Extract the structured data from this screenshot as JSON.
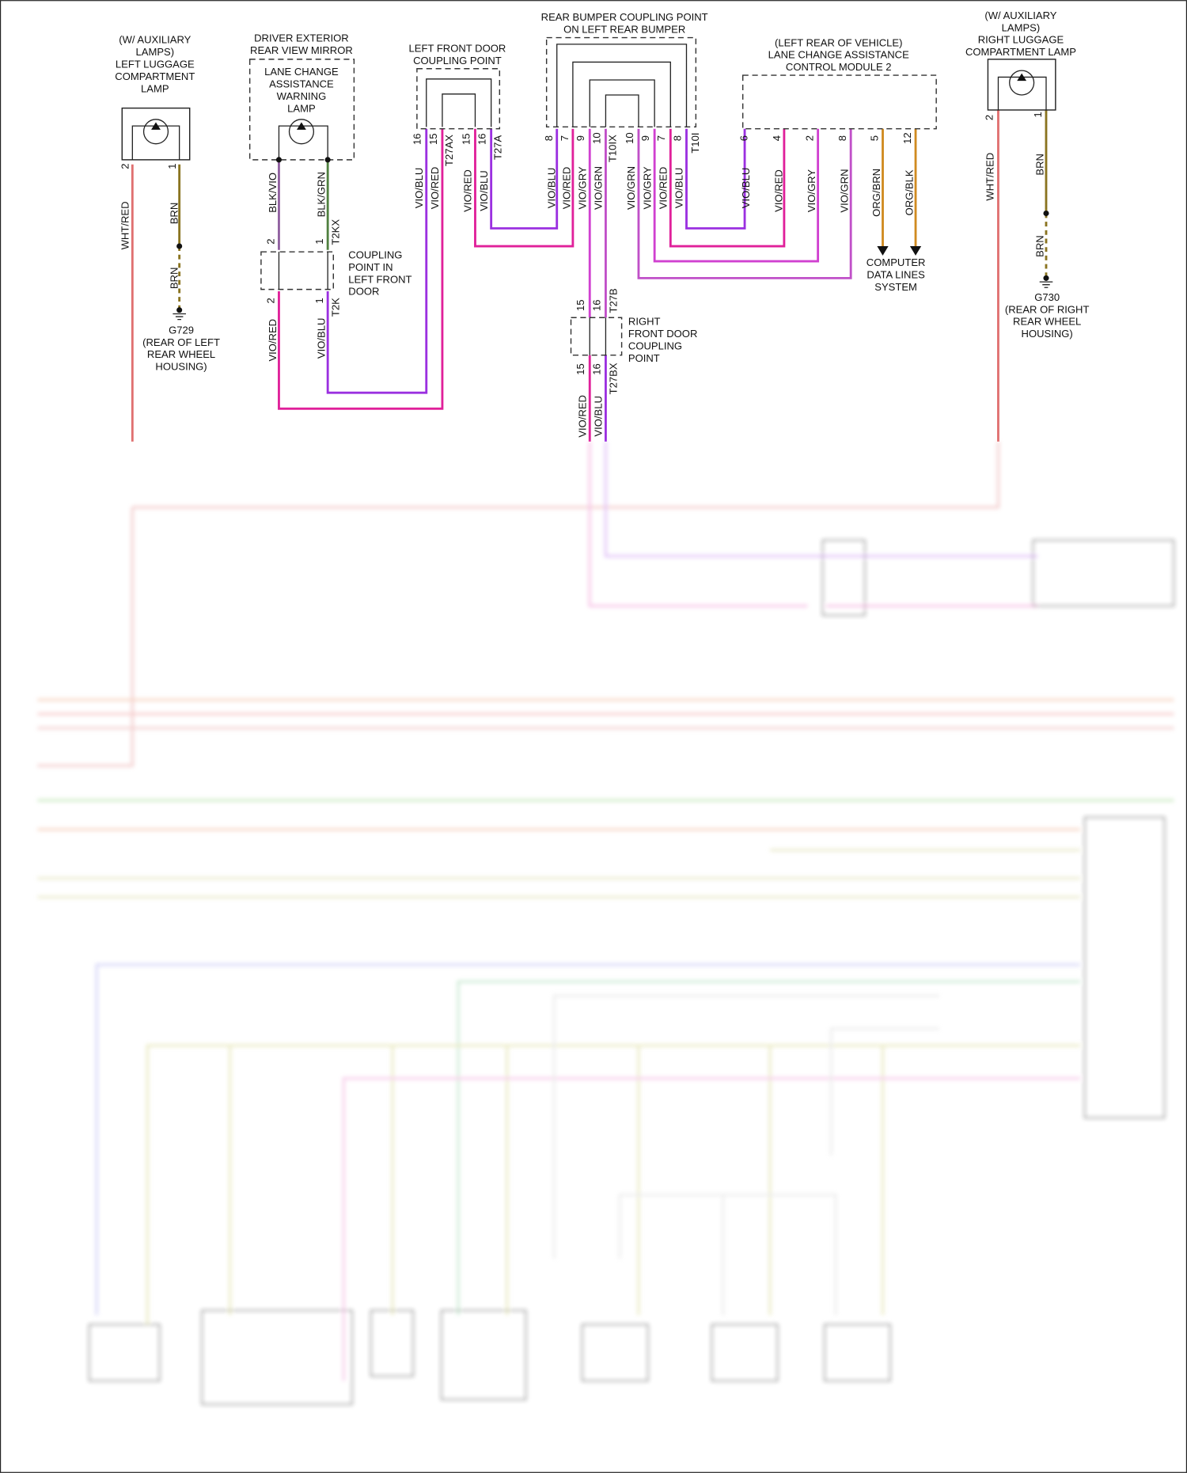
{
  "colors": {
    "VIO_BLU": "#9b30e0",
    "VIO_RED": "#e0209a",
    "VIO_GRY": "#d040d0",
    "VIO_GRN": "#c050c8",
    "WHT_RED": "#e07070",
    "BRN": "#8a7420",
    "BLK_VIO": "#9060a0",
    "BLK_GRN": "#508040",
    "ORG": "#d08a20"
  },
  "components": {
    "left_lamp": {
      "lines": [
        "(W/ AUXILIARY",
        "LAMPS)",
        "LEFT LUGGAGE",
        "COMPARTMENT",
        "LAMP"
      ],
      "icon": "led-lamp-icon"
    },
    "mirror": {
      "lines": [
        "DRIVER EXTERIOR",
        "REAR VIEW MIRROR"
      ]
    },
    "warning_lamp": {
      "lines": [
        "LANE CHANGE",
        "ASSISTANCE",
        "WARNING",
        "LAMP"
      ],
      "icon": "led-lamp-icon"
    },
    "left_door_coupling": {
      "lines": [
        "LEFT FRONT DOOR",
        "COUPLING POINT"
      ]
    },
    "rear_bumper": {
      "lines": [
        "REAR BUMPER COUPLING POINT",
        "ON LEFT REAR BUMPER"
      ]
    },
    "module": {
      "lines": [
        "(LEFT REAR OF VEHICLE)",
        "LANE CHANGE ASSISTANCE",
        "CONTROL MODULE 2"
      ]
    },
    "right_lamp": {
      "lines": [
        "(W/ AUXILIARY",
        "LAMPS)",
        "RIGHT LUGGAGE",
        "COMPARTMENT LAMP"
      ],
      "icon": "led-lamp-icon"
    },
    "coupling_lfd": {
      "lines": [
        "COUPLING",
        "POINT IN",
        "LEFT FRONT",
        "DOOR"
      ]
    },
    "right_door_coupling": {
      "lines": [
        "RIGHT",
        "FRONT DOOR",
        "COUPLING",
        "POINT"
      ]
    },
    "g729": {
      "lines": [
        "G729",
        "(REAR OF LEFT",
        "REAR WHEEL",
        "HOUSING)"
      ],
      "icon": "ground-icon"
    },
    "g730": {
      "lines": [
        "G730",
        "(REAR OF RIGHT",
        "REAR WHEEL",
        "HOUSING)"
      ],
      "icon": "ground-icon"
    },
    "data_lines": {
      "lines": [
        "COMPUTER",
        "DATA LINES",
        "SYSTEM"
      ]
    }
  },
  "labels": [
    {
      "t": "WHT/RED"
    },
    {
      "t": "BRN"
    },
    {
      "t": "BRN"
    },
    {
      "t": "BLK/VIO"
    },
    {
      "t": "BLK/GRN"
    },
    {
      "t": "T2KX"
    },
    {
      "t": "2"
    },
    {
      "t": "1"
    },
    {
      "t": "2"
    },
    {
      "t": "1"
    },
    {
      "t": "T2K"
    },
    {
      "t": "VIO/RED"
    },
    {
      "t": "VIO/BLU"
    },
    {
      "t": "2"
    },
    {
      "t": "1"
    },
    {
      "t": "16"
    },
    {
      "t": "15"
    },
    {
      "t": "T27AX"
    },
    {
      "t": "15"
    },
    {
      "t": "16"
    },
    {
      "t": "T27A"
    },
    {
      "t": "VIO/BLU"
    },
    {
      "t": "VIO/RED"
    },
    {
      "t": "VIO/RED"
    },
    {
      "t": "VIO/BLU"
    },
    {
      "t": "8"
    },
    {
      "t": "7"
    },
    {
      "t": "9"
    },
    {
      "t": "10"
    },
    {
      "t": "T10IX"
    },
    {
      "t": "10"
    },
    {
      "t": "9"
    },
    {
      "t": "7"
    },
    {
      "t": "8"
    },
    {
      "t": "T10I"
    },
    {
      "t": "VIO/BLU"
    },
    {
      "t": "VIO/RED"
    },
    {
      "t": "VIO/GRY"
    },
    {
      "t": "VIO/GRN"
    },
    {
      "t": "VIO/GRN"
    },
    {
      "t": "VIO/GRY"
    },
    {
      "t": "VIO/RED"
    },
    {
      "t": "VIO/BLU"
    },
    {
      "t": "6"
    },
    {
      "t": "4"
    },
    {
      "t": "2"
    },
    {
      "t": "8"
    },
    {
      "t": "5"
    },
    {
      "t": "12"
    },
    {
      "t": "VIO/BLU"
    },
    {
      "t": "VIO/RED"
    },
    {
      "t": "VIO/GRY"
    },
    {
      "t": "VIO/GRN"
    },
    {
      "t": "ORG/BRN"
    },
    {
      "t": "ORG/BLK"
    },
    {
      "t": "15"
    },
    {
      "t": "16"
    },
    {
      "t": "T27B"
    },
    {
      "t": "15"
    },
    {
      "t": "16"
    },
    {
      "t": "T27BX"
    },
    {
      "t": "VIO/RED"
    },
    {
      "t": "VIO/BLU"
    },
    {
      "t": "2"
    },
    {
      "t": "1"
    },
    {
      "t": "WHT/RED"
    },
    {
      "t": "BRN"
    },
    {
      "t": "BRN"
    }
  ]
}
